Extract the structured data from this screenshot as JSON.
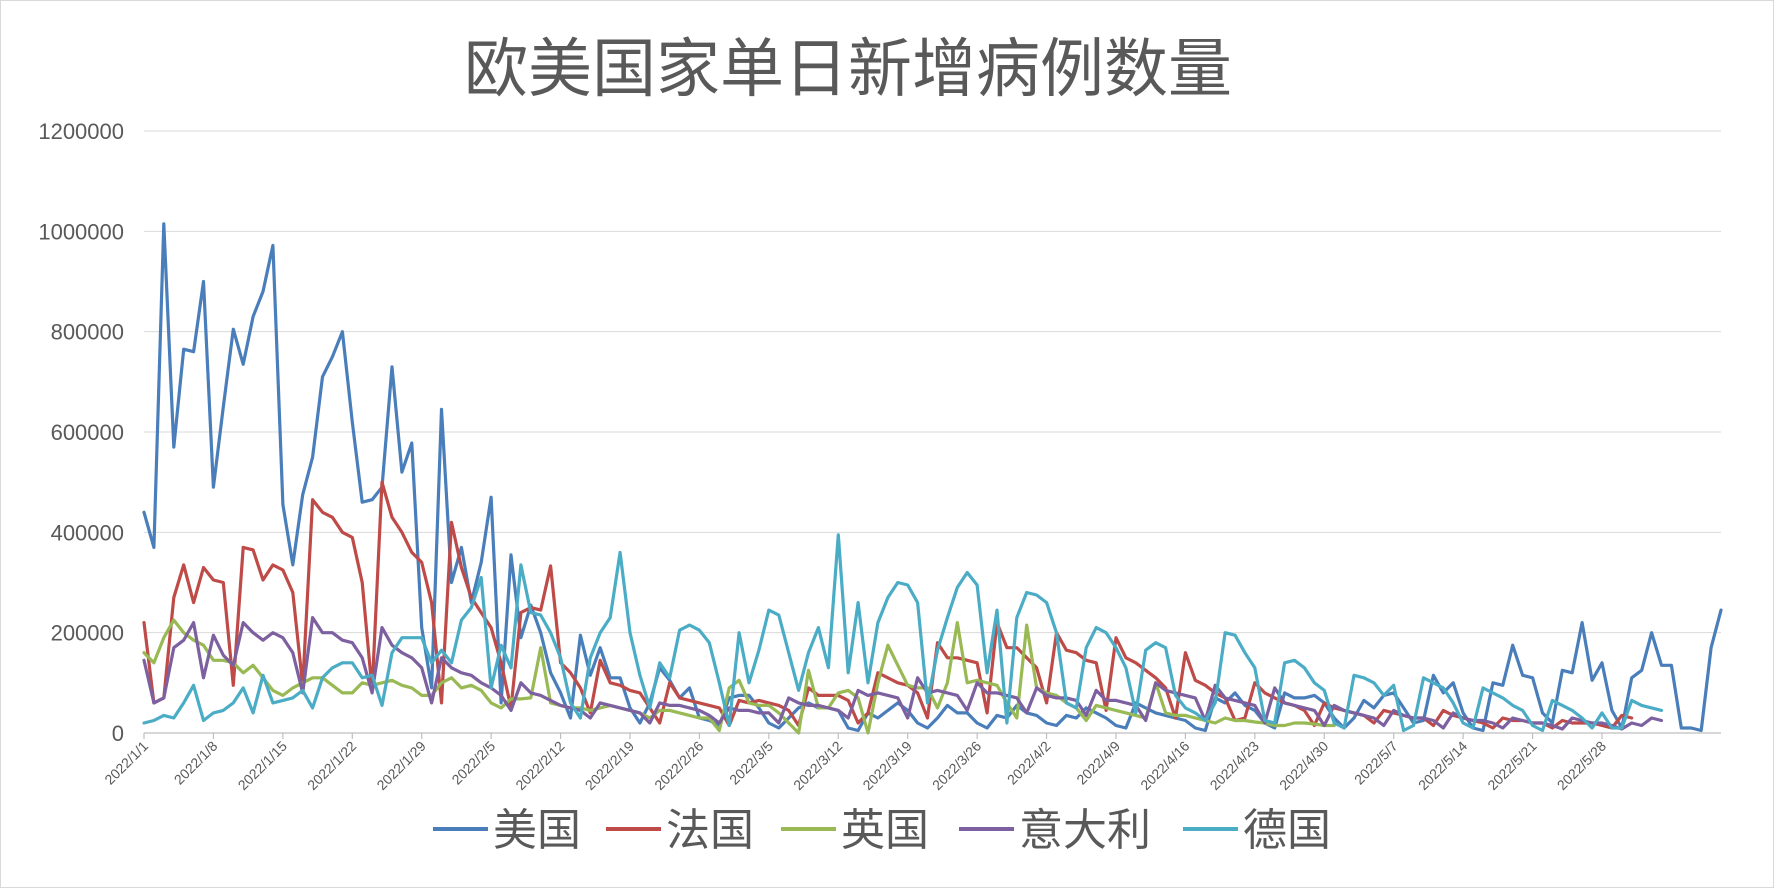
{
  "chart_data": {
    "type": "line",
    "title": "欧美国家单日新增病例数量",
    "xlabel": "",
    "ylabel": "",
    "ylim": [
      0,
      1200000
    ],
    "yticks": [
      "0",
      "200000",
      "400000",
      "600000",
      "800000",
      "1000000",
      "1200000"
    ],
    "xtick_labels": [
      "2022/1/1",
      "2022/1/8",
      "2022/1/15",
      "2022/1/22",
      "2022/1/29",
      "2022/2/5",
      "2022/2/12",
      "2022/2/19",
      "2022/2/26",
      "2022/3/5",
      "2022/3/12",
      "2022/3/19",
      "2022/3/26",
      "2022/4/2",
      "2022/4/9",
      "2022/4/16",
      "2022/4/23",
      "2022/4/30",
      "2022/5/7",
      "2022/5/14",
      "2022/5/21",
      "2022/5/28"
    ],
    "grid": true,
    "legend_position": "bottom",
    "series": [
      {
        "name": "美国",
        "color": "#4a7ebb",
        "values": [
          440000,
          370000,
          1015000,
          570000,
          765000,
          760000,
          900000,
          490000,
          650000,
          805000,
          735000,
          830000,
          880000,
          972000,
          455000,
          335000,
          475000,
          550000,
          710000,
          750000,
          800000,
          620000,
          460000,
          465000,
          490000,
          730000,
          520000,
          578000,
          210000,
          90000,
          645000,
          300000,
          370000,
          260000,
          340000,
          470000,
          60000,
          355000,
          190000,
          255000,
          200000,
          120000,
          80000,
          30000,
          195000,
          115000,
          170000,
          110000,
          110000,
          50000,
          20000,
          60000,
          130000,
          105000,
          70000,
          90000,
          30000,
          25000,
          15000,
          70000,
          75000,
          75000,
          50000,
          20000,
          10000,
          30000,
          50000,
          60000,
          50000,
          50000,
          45000,
          10000,
          5000,
          40000,
          30000,
          45000,
          60000,
          45000,
          20000,
          10000,
          30000,
          55000,
          40000,
          40000,
          20000,
          10000,
          35000,
          30000,
          55000,
          40000,
          35000,
          20000,
          15000,
          35000,
          30000,
          50000,
          40000,
          30000,
          15000,
          10000,
          60000,
          50000,
          40000,
          35000,
          30000,
          25000,
          10000,
          5000,
          70000,
          60000,
          80000,
          55000,
          45000,
          20000,
          10000,
          80000,
          70000,
          70000,
          75000,
          60000,
          30000,
          10000,
          30000,
          65000,
          50000,
          75000,
          80000,
          50000,
          20000,
          25000,
          115000,
          80000,
          100000,
          40000,
          10000,
          5000,
          100000,
          95000,
          175000,
          115000,
          110000,
          40000,
          20000,
          125000,
          120000,
          220000,
          105000,
          140000,
          45000,
          10000,
          110000,
          125000,
          200000,
          135000,
          135000,
          10000,
          10000,
          5000,
          170000,
          245000
        ]
      },
      {
        "name": "法国",
        "color": "#be4b48",
        "values": [
          220000,
          60000,
          70000,
          270000,
          335000,
          260000,
          330000,
          305000,
          300000,
          95000,
          370000,
          365000,
          305000,
          335000,
          325000,
          280000,
          95000,
          465000,
          440000,
          430000,
          400000,
          390000,
          300000,
          85000,
          500000,
          430000,
          400000,
          360000,
          340000,
          260000,
          60000,
          420000,
          330000,
          270000,
          240000,
          210000,
          140000,
          50000,
          240000,
          250000,
          245000,
          333000,
          140000,
          120000,
          90000,
          40000,
          145000,
          100000,
          95000,
          85000,
          80000,
          50000,
          20000,
          100000,
          70000,
          65000,
          60000,
          55000,
          50000,
          15000,
          65000,
          60000,
          65000,
          60000,
          55000,
          45000,
          15000,
          90000,
          75000,
          75000,
          75000,
          65000,
          20000,
          40000,
          120000,
          110000,
          100000,
          95000,
          80000,
          30000,
          180000,
          150000,
          150000,
          145000,
          140000,
          40000,
          220000,
          170000,
          170000,
          150000,
          130000,
          60000,
          200000,
          165000,
          160000,
          145000,
          140000,
          45000,
          190000,
          150000,
          140000,
          125000,
          110000,
          90000,
          30000,
          160000,
          105000,
          95000,
          80000,
          70000,
          25000,
          30000,
          100000,
          80000,
          70000,
          60000,
          55000,
          45000,
          15000,
          60000,
          50000,
          45000,
          40000,
          35000,
          20000,
          45000,
          40000,
          35000,
          30000,
          30000,
          15000,
          45000,
          35000,
          30000,
          25000,
          20000,
          10000,
          30000,
          25000,
          25000,
          20000,
          20000,
          10000,
          25000,
          20000,
          20000,
          20000,
          15000,
          10000,
          35000,
          30000
        ]
      },
      {
        "name": "英国",
        "color": "#98b954",
        "values": [
          160000,
          140000,
          190000,
          225000,
          200000,
          185000,
          175000,
          145000,
          145000,
          140000,
          120000,
          135000,
          110000,
          85000,
          75000,
          90000,
          100000,
          110000,
          110000,
          95000,
          80000,
          80000,
          100000,
          95000,
          100000,
          105000,
          95000,
          90000,
          75000,
          75000,
          100000,
          110000,
          90000,
          95000,
          85000,
          60000,
          50000,
          68000,
          68000,
          70000,
          170000,
          60000,
          55000,
          50000,
          50000,
          45000,
          50000,
          55000,
          50000,
          45000,
          40000,
          30000,
          45000,
          45000,
          40000,
          35000,
          30000,
          30000,
          5000,
          90000,
          105000,
          60000,
          55000,
          55000,
          40000,
          20000,
          0,
          125000,
          50000,
          50000,
          80000,
          85000,
          70000,
          0,
          100000,
          175000,
          135000,
          95000,
          90000,
          90000,
          50000,
          100000,
          220000,
          100000,
          105000,
          100000,
          95000,
          60000,
          30000,
          215000,
          90000,
          80000,
          75000,
          60000,
          50000,
          25000,
          55000,
          50000,
          45000,
          40000,
          35000,
          30000,
          100000,
          40000,
          35000,
          35000,
          30000,
          25000,
          20000,
          30000,
          25000,
          25000,
          22000,
          20000,
          15000,
          15000,
          20000,
          20000,
          18000,
          15000,
          15000,
          null,
          null,
          null,
          null,
          null,
          null,
          null,
          null,
          null,
          null,
          null,
          null,
          null,
          null,
          null,
          null,
          null,
          null,
          null,
          null,
          null,
          null,
          null,
          null,
          null,
          null,
          null,
          null,
          null,
          null,
          null,
          null,
          null,
          null,
          null,
          null,
          null,
          null,
          null
        ]
      },
      {
        "name": "意大利",
        "color": "#7d60a0",
        "values": [
          145000,
          60000,
          70000,
          170000,
          185000,
          220000,
          110000,
          195000,
          155000,
          135000,
          220000,
          200000,
          185000,
          200000,
          190000,
          160000,
          80000,
          230000,
          200000,
          200000,
          185000,
          180000,
          150000,
          80000,
          210000,
          175000,
          160000,
          150000,
          130000,
          60000,
          150000,
          130000,
          120000,
          115000,
          100000,
          90000,
          75000,
          45000,
          100000,
          80000,
          75000,
          65000,
          55000,
          50000,
          45000,
          30000,
          60000,
          55000,
          50000,
          45000,
          40000,
          20000,
          60000,
          55000,
          55000,
          50000,
          45000,
          35000,
          20000,
          50000,
          45000,
          45000,
          40000,
          40000,
          20000,
          70000,
          60000,
          55000,
          55000,
          50000,
          45000,
          30000,
          85000,
          75000,
          80000,
          75000,
          70000,
          30000,
          110000,
          80000,
          85000,
          80000,
          75000,
          45000,
          100000,
          80000,
          80000,
          75000,
          70000,
          40000,
          90000,
          75000,
          70000,
          70000,
          65000,
          35000,
          85000,
          65000,
          65000,
          60000,
          55000,
          25000,
          100000,
          85000,
          80000,
          75000,
          70000,
          25000,
          95000,
          70000,
          65000,
          60000,
          55000,
          20000,
          90000,
          60000,
          55000,
          50000,
          45000,
          15000,
          55000,
          45000,
          40000,
          35000,
          30000,
          15000,
          45000,
          35000,
          30000,
          30000,
          25000,
          10000,
          40000,
          30000,
          25000,
          25000,
          20000,
          10000,
          30000,
          25000,
          20000,
          20000,
          15000,
          8000,
          30000,
          25000,
          20000,
          20000,
          15000,
          8000,
          20000,
          15000,
          30000,
          25000
        ]
      },
      {
        "name": "德国",
        "color": "#4bacc6",
        "values": [
          20000,
          25000,
          35000,
          30000,
          60000,
          95000,
          25000,
          40000,
          45000,
          60000,
          90000,
          40000,
          115000,
          60000,
          65000,
          70000,
          85000,
          50000,
          110000,
          130000,
          140000,
          140000,
          110000,
          115000,
          55000,
          160000,
          190000,
          190000,
          190000,
          140000,
          165000,
          140000,
          225000,
          250000,
          310000,
          90000,
          175000,
          130000,
          335000,
          240000,
          235000,
          200000,
          150000,
          60000,
          30000,
          150000,
          200000,
          230000,
          360000,
          200000,
          115000,
          50000,
          140000,
          110000,
          205000,
          215000,
          205000,
          180000,
          100000,
          15000,
          200000,
          100000,
          165000,
          245000,
          235000,
          160000,
          85000,
          160000,
          210000,
          130000,
          395000,
          120000,
          260000,
          100000,
          220000,
          270000,
          300000,
          295000,
          260000,
          60000,
          165000,
          230000,
          290000,
          320000,
          295000,
          120000,
          245000,
          20000,
          230000,
          280000,
          275000,
          260000,
          200000,
          60000,
          50000,
          170000,
          210000,
          200000,
          170000,
          130000,
          40000,
          165000,
          180000,
          170000,
          75000,
          50000,
          40000,
          25000,
          60000,
          200000,
          195000,
          160000,
          130000,
          25000,
          20000,
          140000,
          145000,
          130000,
          100000,
          85000,
          20000,
          10000,
          115000,
          110000,
          100000,
          75000,
          95000,
          5000,
          15000,
          110000,
          100000,
          90000,
          60000,
          20000,
          10000,
          90000,
          80000,
          70000,
          55000,
          45000,
          15000,
          5000,
          65000,
          55000,
          45000,
          30000,
          10000,
          40000,
          10000,
          10000,
          65000,
          55000,
          50000,
          45000
        ]
      }
    ]
  }
}
